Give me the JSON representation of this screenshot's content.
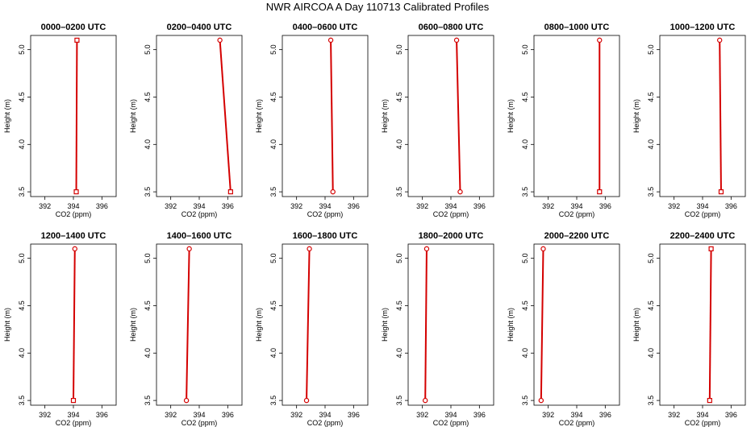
{
  "title": "NWR AIRCOA A  Day 110713  Calibrated Profiles",
  "chart_data": [
    {
      "type": "line",
      "title": "0000–0200 UTC",
      "xlabel": "CO2 (ppm)",
      "ylabel": "Height (m)",
      "xlim": [
        391,
        397
      ],
      "ylim": [
        3.45,
        5.15
      ],
      "xticks": [
        392,
        394,
        396
      ],
      "yticks": [
        3.5,
        4.0,
        4.5,
        5.0
      ],
      "grid": false,
      "color": "#d40000",
      "series": [
        {
          "x": [
            394.2,
            394.25
          ],
          "y": [
            3.5,
            5.1
          ]
        }
      ],
      "markers": [
        "square",
        "square"
      ]
    },
    {
      "type": "line",
      "title": "0200–0400 UTC",
      "xlabel": "CO2 (ppm)",
      "ylabel": "Height (m)",
      "xlim": [
        391,
        397
      ],
      "ylim": [
        3.45,
        5.15
      ],
      "xticks": [
        392,
        394,
        396
      ],
      "yticks": [
        3.5,
        4.0,
        4.5,
        5.0
      ],
      "grid": false,
      "color": "#d40000",
      "series": [
        {
          "x": [
            396.2,
            395.45
          ],
          "y": [
            3.5,
            5.1
          ]
        }
      ],
      "markers": [
        "square",
        "circle"
      ]
    },
    {
      "type": "line",
      "title": "0400–0600 UTC",
      "xlabel": "CO2 (ppm)",
      "ylabel": "Height (m)",
      "xlim": [
        391,
        397
      ],
      "ylim": [
        3.45,
        5.15
      ],
      "xticks": [
        392,
        394,
        396
      ],
      "yticks": [
        3.5,
        4.0,
        4.5,
        5.0
      ],
      "grid": false,
      "color": "#d40000",
      "series": [
        {
          "x": [
            394.55,
            394.4
          ],
          "y": [
            3.5,
            5.1
          ]
        }
      ],
      "markers": [
        "circle",
        "circle"
      ]
    },
    {
      "type": "line",
      "title": "0600–0800 UTC",
      "xlabel": "CO2 (ppm)",
      "ylabel": "Height (m)",
      "xlim": [
        391,
        397
      ],
      "ylim": [
        3.45,
        5.15
      ],
      "xticks": [
        392,
        394,
        396
      ],
      "yticks": [
        3.5,
        4.0,
        4.5,
        5.0
      ],
      "grid": false,
      "color": "#d40000",
      "series": [
        {
          "x": [
            394.65,
            394.4
          ],
          "y": [
            3.5,
            5.1
          ]
        }
      ],
      "markers": [
        "circle",
        "circle"
      ]
    },
    {
      "type": "line",
      "title": "0800–1000 UTC",
      "xlabel": "CO2 (ppm)",
      "ylabel": "Height (m)",
      "xlim": [
        391,
        397
      ],
      "ylim": [
        3.45,
        5.15
      ],
      "xticks": [
        392,
        394,
        396
      ],
      "yticks": [
        3.5,
        4.0,
        4.5,
        5.0
      ],
      "grid": false,
      "color": "#d40000",
      "series": [
        {
          "x": [
            395.6,
            395.6
          ],
          "y": [
            3.5,
            5.1
          ]
        }
      ],
      "markers": [
        "square",
        "circle"
      ]
    },
    {
      "type": "line",
      "title": "1000–1200 UTC",
      "xlabel": "CO2 (ppm)",
      "ylabel": "Height (m)",
      "xlim": [
        391,
        397
      ],
      "ylim": [
        3.45,
        5.15
      ],
      "xticks": [
        392,
        394,
        396
      ],
      "yticks": [
        3.5,
        4.0,
        4.5,
        5.0
      ],
      "grid": false,
      "color": "#d40000",
      "series": [
        {
          "x": [
            395.3,
            395.2
          ],
          "y": [
            3.5,
            5.1
          ]
        }
      ],
      "markers": [
        "square",
        "circle"
      ]
    },
    {
      "type": "line",
      "title": "1200–1400 UTC",
      "xlabel": "CO2 (ppm)",
      "ylabel": "Height (m)",
      "xlim": [
        391,
        397
      ],
      "ylim": [
        3.45,
        5.15
      ],
      "xticks": [
        392,
        394,
        396
      ],
      "yticks": [
        3.5,
        4.0,
        4.5,
        5.0
      ],
      "grid": false,
      "color": "#d40000",
      "series": [
        {
          "x": [
            394.0,
            394.1
          ],
          "y": [
            3.5,
            5.1
          ]
        }
      ],
      "markers": [
        "square",
        "circle"
      ]
    },
    {
      "type": "line",
      "title": "1400–1600 UTC",
      "xlabel": "CO2 (ppm)",
      "ylabel": "Height (m)",
      "xlim": [
        391,
        397
      ],
      "ylim": [
        3.45,
        5.15
      ],
      "xticks": [
        392,
        394,
        396
      ],
      "yticks": [
        3.5,
        4.0,
        4.5,
        5.0
      ],
      "grid": false,
      "color": "#d40000",
      "series": [
        {
          "x": [
            393.1,
            393.3
          ],
          "y": [
            3.5,
            5.1
          ]
        }
      ],
      "markers": [
        "circle",
        "circle"
      ]
    },
    {
      "type": "line",
      "title": "1600–1800 UTC",
      "xlabel": "CO2 (ppm)",
      "ylabel": "Height (m)",
      "xlim": [
        391,
        397
      ],
      "ylim": [
        3.45,
        5.15
      ],
      "xticks": [
        392,
        394,
        396
      ],
      "yticks": [
        3.5,
        4.0,
        4.5,
        5.0
      ],
      "grid": false,
      "color": "#d40000",
      "series": [
        {
          "x": [
            392.7,
            392.9
          ],
          "y": [
            3.5,
            5.1
          ]
        }
      ],
      "markers": [
        "circle",
        "circle"
      ]
    },
    {
      "type": "line",
      "title": "1800–2000 UTC",
      "xlabel": "CO2 (ppm)",
      "ylabel": "Height (m)",
      "xlim": [
        391,
        397
      ],
      "ylim": [
        3.45,
        5.15
      ],
      "xticks": [
        392,
        394,
        396
      ],
      "yticks": [
        3.5,
        4.0,
        4.5,
        5.0
      ],
      "grid": false,
      "color": "#d40000",
      "series": [
        {
          "x": [
            392.2,
            392.3
          ],
          "y": [
            3.5,
            5.1
          ]
        }
      ],
      "markers": [
        "circle",
        "circle"
      ]
    },
    {
      "type": "line",
      "title": "2000–2200 UTC",
      "xlabel": "CO2 (ppm)",
      "ylabel": "Height (m)",
      "xlim": [
        391,
        397
      ],
      "ylim": [
        3.45,
        5.15
      ],
      "xticks": [
        392,
        394,
        396
      ],
      "yticks": [
        3.5,
        4.0,
        4.5,
        5.0
      ],
      "grid": false,
      "color": "#d40000",
      "series": [
        {
          "x": [
            391.5,
            391.65
          ],
          "y": [
            3.5,
            5.1
          ]
        }
      ],
      "markers": [
        "circle",
        "circle"
      ]
    },
    {
      "type": "line",
      "title": "2200–2400 UTC",
      "xlabel": "CO2 (ppm)",
      "ylabel": "Height (m)",
      "xlim": [
        391,
        397
      ],
      "ylim": [
        3.45,
        5.15
      ],
      "xticks": [
        392,
        394,
        396
      ],
      "yticks": [
        3.5,
        4.0,
        4.5,
        5.0
      ],
      "grid": false,
      "color": "#d40000",
      "series": [
        {
          "x": [
            394.5,
            394.6
          ],
          "y": [
            3.5,
            5.1
          ]
        }
      ],
      "markers": [
        "square",
        "square"
      ]
    }
  ]
}
